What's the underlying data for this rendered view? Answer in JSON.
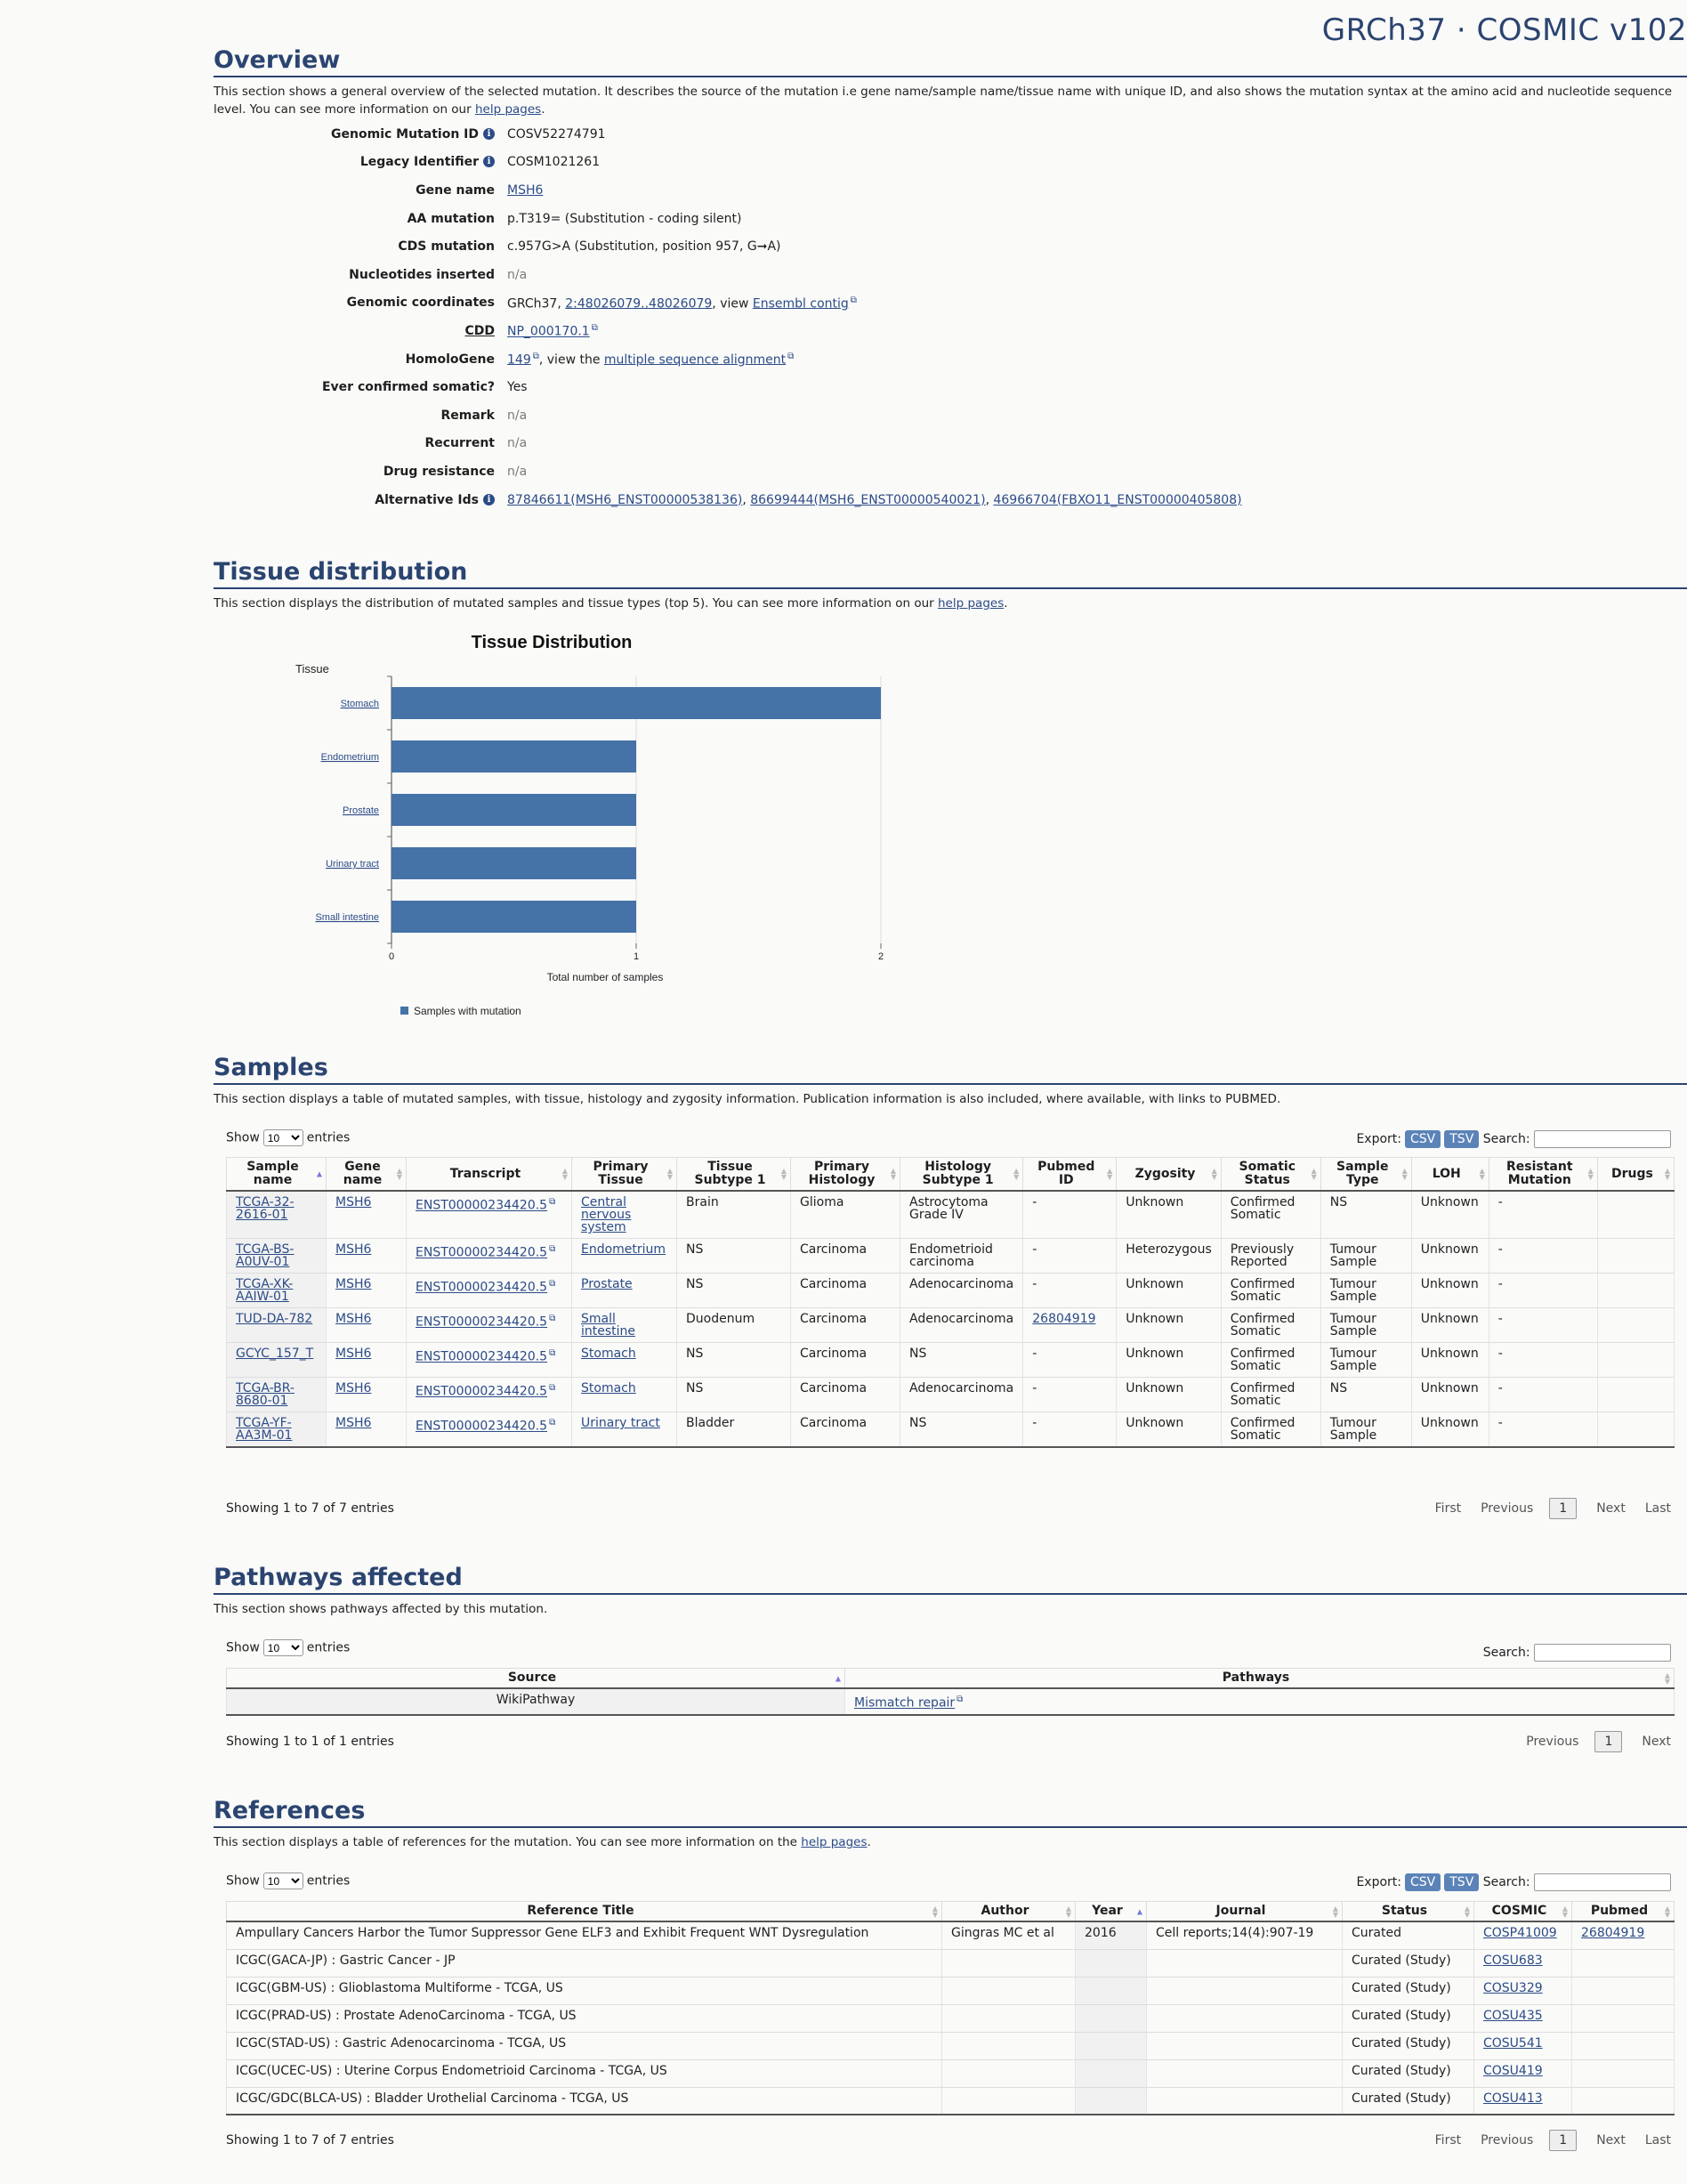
{
  "site_title": "GRCh37 · COSMIC v102",
  "overview": {
    "heading": "Overview",
    "description": "This section shows a general overview of the selected mutation. It describes the source of the mutation i.e gene name/sample name/tissue name with unique ID, and also shows the mutation syntax at the amino acid and nucleotide sequence level. You can see more information on our ",
    "help_link": "help pages",
    "fields": {
      "genomic_mutation_id": {
        "label": "Genomic Mutation ID",
        "value": "COSV52274791"
      },
      "legacy_identifier": {
        "label": "Legacy Identifier",
        "value": "COSM1021261"
      },
      "gene_name": {
        "label": "Gene name",
        "value": "MSH6"
      },
      "aa_mutation": {
        "label": "AA mutation",
        "value": "p.T319= (Substitution - coding silent)"
      },
      "cds_mutation": {
        "label": "CDS mutation",
        "value": "c.957G>A (Substitution, position 957, G➞A)"
      },
      "nucleotides_inserted": {
        "label": "Nucleotides inserted",
        "value": "n/a"
      },
      "genomic_coordinates": {
        "label": "Genomic coordinates",
        "prefix": "GRCh37, ",
        "coords": "2:48026079..48026079",
        "mid": ", view ",
        "ensembl": "Ensembl contig"
      },
      "cdd": {
        "label": "CDD",
        "value": "NP_000170.1"
      },
      "homologene": {
        "label": "HomoloGene",
        "value": "149",
        "mid": ", view the ",
        "msa": "multiple sequence alignment"
      },
      "ever_confirmed": {
        "label": "Ever confirmed somatic?",
        "value": "Yes"
      },
      "remark": {
        "label": "Remark",
        "value": "n/a"
      },
      "recurrent": {
        "label": "Recurrent",
        "value": "n/a"
      },
      "drug_resistance": {
        "label": "Drug resistance",
        "value": "n/a"
      },
      "alternative_ids": {
        "label": "Alternative Ids",
        "ids": [
          "87846611(MSH6_ENST00000538136)",
          "86699444(MSH6_ENST00000540021)",
          "46966704(FBXO11_ENST00000405808)"
        ]
      }
    }
  },
  "tissue": {
    "heading": "Tissue distribution",
    "description": "This section displays the distribution of mutated samples and tissue types (top 5). You can see more information on our ",
    "help_link": "help pages"
  },
  "chart_data": {
    "type": "bar",
    "orientation": "horizontal",
    "title": "Tissue Distribution",
    "ylabel": "Tissue",
    "xlabel": "Total number of samples",
    "categories": [
      "Stomach",
      "Endometrium",
      "Prostate",
      "Urinary tract",
      "Small intestine"
    ],
    "series": [
      {
        "name": "Samples with mutation",
        "values": [
          2,
          1,
          1,
          1,
          1
        ],
        "color": "#4572a7"
      }
    ],
    "xlim": [
      0,
      2
    ],
    "xticks": [
      "0",
      "1",
      "2"
    ],
    "grid": true,
    "legend_position": "bottom-left"
  },
  "samples": {
    "heading": "Samples",
    "description": "This section displays a table of mutated samples, with tissue, histology and zygosity information. Publication information is also included, where available, with links to PUBMED.",
    "show": "Show",
    "entries": "entries",
    "length": "10",
    "export": "Export:",
    "csv": "CSV",
    "tsv": "TSV",
    "search": "Search:",
    "columns": [
      "Sample name",
      "Gene name",
      "Transcript",
      "Primary Tissue",
      "Tissue Subtype 1",
      "Primary Histology",
      "Histology Subtype 1",
      "Pubmed ID",
      "Zygosity",
      "Somatic Status",
      "Sample Type",
      "LOH",
      "Resistant Mutation",
      "Drugs"
    ],
    "rows": [
      [
        "TCGA-32-2616-01",
        "MSH6",
        "ENST00000234420.5",
        "Central nervous system",
        "Brain",
        "Glioma",
        "Astrocytoma Grade IV",
        "-",
        "Unknown",
        "Confirmed Somatic",
        "NS",
        "Unknown",
        "-",
        ""
      ],
      [
        "TCGA-BS-A0UV-01",
        "MSH6",
        "ENST00000234420.5",
        "Endometrium",
        "NS",
        "Carcinoma",
        "Endometrioid carcinoma",
        "-",
        "Heterozygous",
        "Previously Reported",
        "Tumour Sample",
        "Unknown",
        "-",
        ""
      ],
      [
        "TCGA-XK-AAIW-01",
        "MSH6",
        "ENST00000234420.5",
        "Prostate",
        "NS",
        "Carcinoma",
        "Adenocarcinoma",
        "-",
        "Unknown",
        "Confirmed Somatic",
        "Tumour Sample",
        "Unknown",
        "-",
        ""
      ],
      [
        "TUD-DA-782",
        "MSH6",
        "ENST00000234420.5",
        "Small intestine",
        "Duodenum",
        "Carcinoma",
        "Adenocarcinoma",
        "26804919",
        "Unknown",
        "Confirmed Somatic",
        "Tumour Sample",
        "Unknown",
        "-",
        ""
      ],
      [
        "GCYC_157_T",
        "MSH6",
        "ENST00000234420.5",
        "Stomach",
        "NS",
        "Carcinoma",
        "NS",
        "-",
        "Unknown",
        "Confirmed Somatic",
        "Tumour Sample",
        "Unknown",
        "-",
        ""
      ],
      [
        "TCGA-BR-8680-01",
        "MSH6",
        "ENST00000234420.5",
        "Stomach",
        "NS",
        "Carcinoma",
        "Adenocarcinoma",
        "-",
        "Unknown",
        "Confirmed Somatic",
        "NS",
        "Unknown",
        "-",
        ""
      ],
      [
        "TCGA-YF-AA3M-01",
        "MSH6",
        "ENST00000234420.5",
        "Urinary tract",
        "Bladder",
        "Carcinoma",
        "NS",
        "-",
        "Unknown",
        "Confirmed Somatic",
        "Tumour Sample",
        "Unknown",
        "-",
        ""
      ]
    ],
    "info": "Showing 1 to 7 of 7 entries",
    "pager": {
      "first": "First",
      "previous": "Previous",
      "page": "1",
      "next": "Next",
      "last": "Last"
    }
  },
  "pathways": {
    "heading": "Pathways affected",
    "description": "This section shows pathways affected by this mutation.",
    "show": "Show",
    "entries": "entries",
    "length": "10",
    "search": "Search:",
    "columns": [
      "Source",
      "Pathways"
    ],
    "rows": [
      [
        "WikiPathway",
        "Mismatch repair"
      ]
    ],
    "info": "Showing 1 to 1 of 1 entries",
    "pager": {
      "previous": "Previous",
      "page": "1",
      "next": "Next"
    }
  },
  "references": {
    "heading": "References",
    "description": "This section displays a table of references for the mutation. You can see more information on the ",
    "help_link": "help pages",
    "show": "Show",
    "entries": "entries",
    "length": "10",
    "export": "Export:",
    "csv": "CSV",
    "tsv": "TSV",
    "search": "Search:",
    "columns": [
      "Reference Title",
      "Author",
      "Year",
      "Journal",
      "Status",
      "COSMIC",
      "Pubmed"
    ],
    "rows": [
      [
        "Ampullary Cancers Harbor the Tumor Suppressor Gene ELF3 and Exhibit Frequent WNT Dysregulation",
        "Gingras MC et al",
        "2016",
        "Cell reports;14(4):907-19",
        "Curated",
        "COSP41009",
        "26804919"
      ],
      [
        "ICGC(GACA-JP) : Gastric Cancer - JP",
        "",
        "",
        "",
        "Curated (Study)",
        "COSU683",
        ""
      ],
      [
        "ICGC(GBM-US) : Glioblastoma Multiforme - TCGA, US",
        "",
        "",
        "",
        "Curated (Study)",
        "COSU329",
        ""
      ],
      [
        "ICGC(PRAD-US) : Prostate AdenoCarcinoma - TCGA, US",
        "",
        "",
        "",
        "Curated (Study)",
        "COSU435",
        ""
      ],
      [
        "ICGC(STAD-US) : Gastric Adenocarcinoma - TCGA, US",
        "",
        "",
        "",
        "Curated (Study)",
        "COSU541",
        ""
      ],
      [
        "ICGC(UCEC-US) : Uterine Corpus Endometrioid Carcinoma - TCGA, US",
        "",
        "",
        "",
        "Curated (Study)",
        "COSU419",
        ""
      ],
      [
        "ICGC/GDC(BLCA-US) : Bladder Urothelial Carcinoma - TCGA, US",
        "",
        "",
        "",
        "Curated (Study)",
        "COSU413",
        ""
      ]
    ],
    "info": "Showing 1 to 7 of 7 entries",
    "pager": {
      "first": "First",
      "previous": "Previous",
      "page": "1",
      "next": "Next",
      "last": "Last"
    }
  }
}
